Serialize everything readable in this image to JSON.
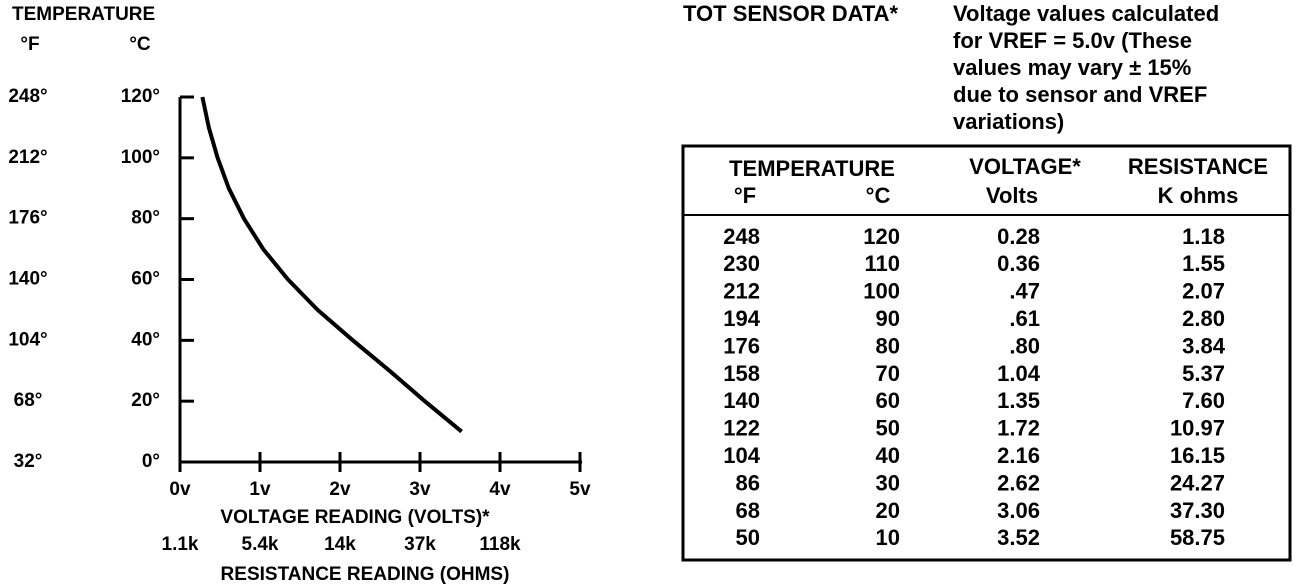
{
  "chart_data": {
    "type": "line",
    "title": "TEMPERATURE",
    "y_axis_label": "°C",
    "y2_axis_label": "°F",
    "x_axis_label": "VOLTAGE READING (VOLTS)*",
    "x2_axis_label": "RESISTANCE READING (OHMS)",
    "x": [
      0.28,
      0.36,
      0.47,
      0.61,
      0.8,
      1.04,
      1.35,
      1.72,
      2.16,
      2.62,
      3.06,
      3.52
    ],
    "series": [
      {
        "name": "TOT",
        "color": "#000000",
        "values": [
          120,
          110,
          100,
          90,
          80,
          70,
          60,
          50,
          40,
          30,
          20,
          10
        ]
      }
    ],
    "xlim": [
      0,
      5
    ],
    "xticks": [
      {
        "value": 0,
        "label": "0v"
      },
      {
        "value": 1,
        "label": "1v"
      },
      {
        "value": 2,
        "label": "2v"
      },
      {
        "value": 3,
        "label": "3v"
      },
      {
        "value": 4,
        "label": "4v"
      },
      {
        "value": 5,
        "label": "5v"
      }
    ],
    "x2ticks": [
      {
        "value": 0,
        "label": "1.1k"
      },
      {
        "value": 1,
        "label": "5.4k"
      },
      {
        "value": 2,
        "label": "14k"
      },
      {
        "value": 3,
        "label": "37k"
      },
      {
        "value": 4,
        "label": "118k"
      }
    ],
    "ylim": [
      0,
      120
    ],
    "yticks": [
      {
        "value": 0,
        "label": "0°"
      },
      {
        "value": 20,
        "label": "20°"
      },
      {
        "value": 40,
        "label": "40°"
      },
      {
        "value": 60,
        "label": "60°"
      },
      {
        "value": 80,
        "label": "80°"
      },
      {
        "value": 100,
        "label": "100°"
      },
      {
        "value": 120,
        "label": "120°"
      }
    ],
    "y2lim": [
      32,
      248
    ],
    "y2ticks": [
      {
        "value": 32,
        "label": "32°"
      },
      {
        "value": 68,
        "label": "68°"
      },
      {
        "value": 104,
        "label": "104°"
      },
      {
        "value": 140,
        "label": "140°"
      },
      {
        "value": 176,
        "label": "176°"
      },
      {
        "value": 212,
        "label": "212°"
      },
      {
        "value": 248,
        "label": "248°"
      }
    ]
  },
  "sensor_data": {
    "title": "TOT SENSOR DATA*",
    "note": [
      "Voltage values calculated",
      "for VREF = 5.0v (These",
      "values may vary ± 15%",
      "due to sensor and VREF",
      "variations)"
    ],
    "table": {
      "header": {
        "temperature": "TEMPERATURE",
        "f": "°F",
        "c": "°C",
        "voltage": "VOLTAGE*",
        "volts": "Volts",
        "resistance": "RESISTANCE",
        "kohms": "K ohms"
      },
      "rows": [
        [
          "248",
          "120",
          "0.28",
          "1.18"
        ],
        [
          "230",
          "110",
          "0.36",
          "1.55"
        ],
        [
          "212",
          "100",
          ".47",
          "2.07"
        ],
        [
          "194",
          "90",
          ".61",
          "2.80"
        ],
        [
          "176",
          "80",
          ".80",
          "3.84"
        ],
        [
          "158",
          "70",
          "1.04",
          "5.37"
        ],
        [
          "140",
          "60",
          "1.35",
          "7.60"
        ],
        [
          "122",
          "50",
          "1.72",
          "10.97"
        ],
        [
          "104",
          "40",
          "2.16",
          "16.15"
        ],
        [
          "86",
          "30",
          "2.62",
          "24.27"
        ],
        [
          "68",
          "20",
          "3.06",
          "37.30"
        ],
        [
          "50",
          "10",
          "3.52",
          "58.75"
        ]
      ]
    }
  }
}
